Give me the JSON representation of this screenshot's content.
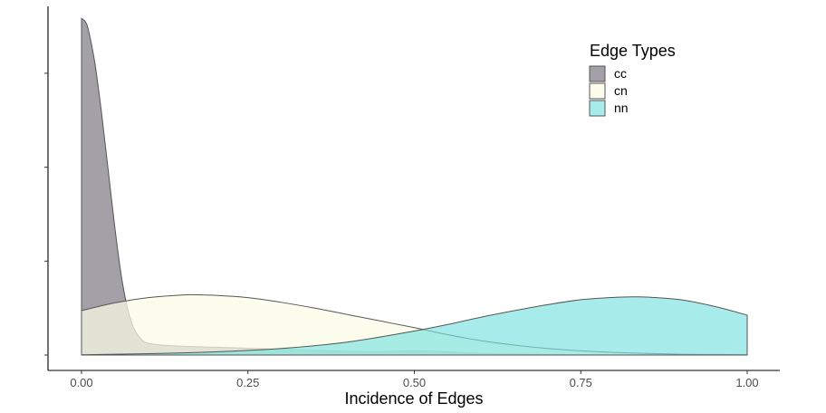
{
  "chart_data": {
    "type": "area",
    "subtype": "density",
    "xlabel": "Incidence of Edges",
    "ylabel": "",
    "xlim": [
      0,
      1
    ],
    "ylim": [
      0,
      13.4
    ],
    "x_ticks": [
      0.0,
      0.25,
      0.5,
      0.75,
      1.0
    ],
    "x_tick_labels": [
      "0.00",
      "0.25",
      "0.50",
      "0.75",
      "1.00"
    ],
    "y_ticks": [
      0,
      3.6,
      7.2,
      10.8
    ],
    "y_tick_labels_visible": false,
    "grid": false,
    "legend": {
      "title": "Edge Types",
      "position": "top-right"
    },
    "series": [
      {
        "name": "cc",
        "fill": "#7f7c87",
        "opacity": 0.72,
        "x": [
          0.0,
          0.005,
          0.01,
          0.02,
          0.03,
          0.04,
          0.05,
          0.06,
          0.07,
          0.08,
          0.09,
          0.1,
          0.12,
          0.15,
          0.2,
          0.25,
          0.3,
          0.35,
          0.4,
          0.45,
          0.5,
          0.55,
          0.6,
          0.7,
          0.8,
          0.9,
          1.0
        ],
        "values": [
          12.9,
          12.8,
          12.5,
          11.2,
          9.3,
          7.1,
          4.9,
          3.0,
          1.7,
          0.95,
          0.6,
          0.45,
          0.38,
          0.34,
          0.3,
          0.26,
          0.22,
          0.18,
          0.14,
          0.13,
          0.16,
          0.12,
          0.06,
          0.02,
          0.01,
          0.01,
          0.01
        ]
      },
      {
        "name": "cn",
        "fill": "#fbfce6",
        "opacity": 0.72,
        "x": [
          0.0,
          0.05,
          0.1,
          0.15,
          0.17,
          0.2,
          0.25,
          0.3,
          0.35,
          0.4,
          0.45,
          0.5,
          0.55,
          0.6,
          0.65,
          0.7,
          0.75,
          0.8,
          0.85,
          0.9,
          0.95,
          1.0
        ],
        "values": [
          1.7,
          2.0,
          2.2,
          2.3,
          2.31,
          2.29,
          2.2,
          2.02,
          1.8,
          1.55,
          1.3,
          1.05,
          0.78,
          0.55,
          0.38,
          0.25,
          0.16,
          0.1,
          0.06,
          0.03,
          0.02,
          0.01
        ]
      },
      {
        "name": "nn",
        "fill": "#78e2df",
        "opacity": 0.65,
        "x": [
          0.0,
          0.1,
          0.2,
          0.3,
          0.4,
          0.5,
          0.55,
          0.6,
          0.65,
          0.7,
          0.75,
          0.8,
          0.83,
          0.85,
          0.9,
          0.95,
          1.0
        ],
        "values": [
          0.01,
          0.05,
          0.12,
          0.25,
          0.5,
          0.92,
          1.17,
          1.45,
          1.7,
          1.93,
          2.12,
          2.21,
          2.23,
          2.22,
          2.12,
          1.87,
          1.53
        ]
      }
    ]
  }
}
